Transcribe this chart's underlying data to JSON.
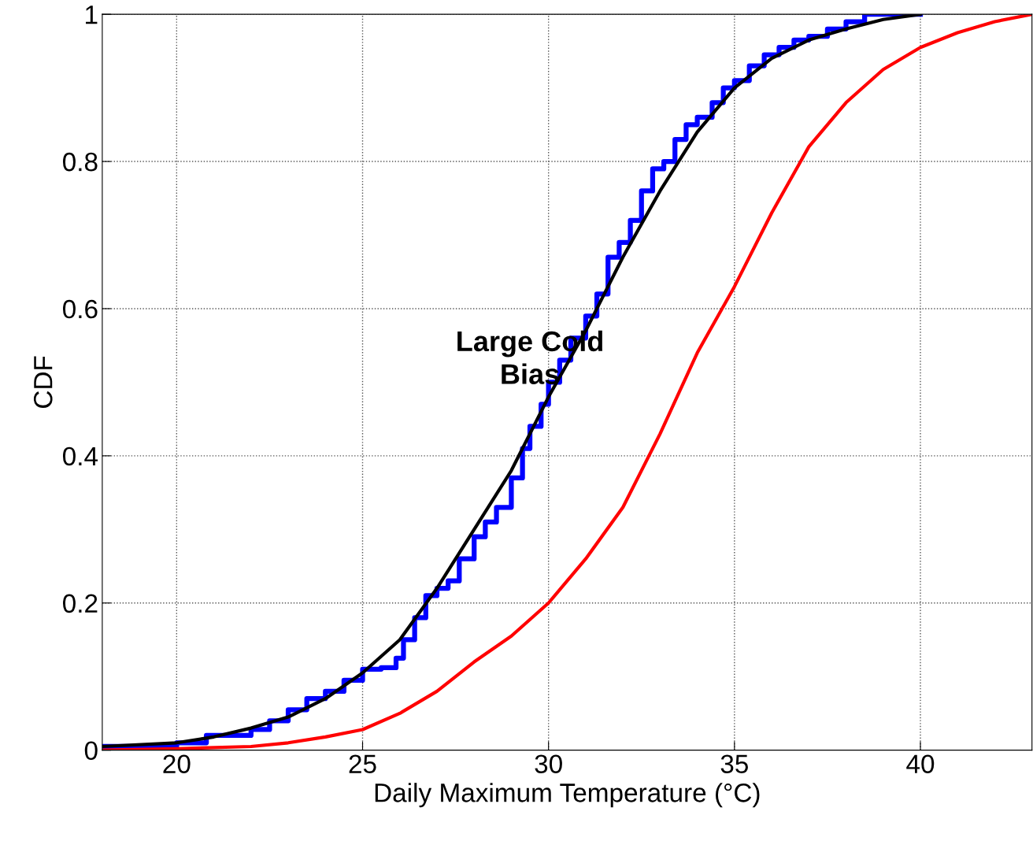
{
  "chart_data": {
    "type": "line",
    "xlabel": "Daily Maximum Temperature (°C)",
    "ylabel": "CDF",
    "xlim": [
      18,
      43
    ],
    "ylim": [
      0,
      1
    ],
    "xticks": [
      20,
      25,
      30,
      35,
      40
    ],
    "yticks": [
      0,
      0.2,
      0.4,
      0.6,
      0.8,
      1
    ],
    "grid": true,
    "line_style": "solid",
    "marker": "none",
    "annotations": [
      "Large Cold\nBias"
    ],
    "series": [
      {
        "type": "step",
        "color": "#0000ff",
        "x": [
          18,
          20,
          20.8,
          22,
          22.5,
          23,
          23.5,
          24,
          24.5,
          25,
          25.5,
          25.9,
          26.1,
          26.4,
          26.7,
          27,
          27.3,
          27.6,
          28,
          28.3,
          28.6,
          29,
          29.3,
          29.5,
          29.8,
          30,
          30.3,
          30.6,
          31,
          31.3,
          31.6,
          31.9,
          32.2,
          32.5,
          32.8,
          33.1,
          33.4,
          33.7,
          34,
          34.4,
          34.7,
          35,
          35.4,
          35.8,
          36.2,
          36.6,
          37,
          37.5,
          38,
          38.5,
          40
        ],
        "values": [
          0.005,
          0.01,
          0.02,
          0.028,
          0.04,
          0.055,
          0.07,
          0.08,
          0.095,
          0.11,
          0.112,
          0.125,
          0.15,
          0.18,
          0.21,
          0.22,
          0.23,
          0.26,
          0.29,
          0.31,
          0.33,
          0.37,
          0.41,
          0.44,
          0.47,
          0.5,
          0.53,
          0.56,
          0.59,
          0.62,
          0.67,
          0.69,
          0.72,
          0.76,
          0.79,
          0.8,
          0.83,
          0.85,
          0.86,
          0.88,
          0.9,
          0.91,
          0.93,
          0.945,
          0.955,
          0.965,
          0.97,
          0.98,
          0.99,
          1.0,
          1.0
        ]
      },
      {
        "color": "#000000",
        "x": [
          18,
          20,
          21,
          22,
          23,
          24,
          25,
          26,
          27,
          28,
          29,
          30,
          31,
          32,
          33,
          34,
          35,
          36,
          37,
          38,
          39,
          40
        ],
        "values": [
          0.005,
          0.01,
          0.018,
          0.03,
          0.045,
          0.07,
          0.105,
          0.15,
          0.22,
          0.3,
          0.38,
          0.48,
          0.57,
          0.67,
          0.76,
          0.84,
          0.9,
          0.94,
          0.965,
          0.98,
          0.993,
          1.0
        ]
      },
      {
        "color": "#ff0000",
        "x": [
          18,
          20,
          22,
          23,
          24,
          25,
          26,
          27,
          28,
          29,
          30,
          31,
          32,
          33,
          34,
          35,
          36,
          37,
          38,
          39,
          40,
          41,
          42,
          43
        ],
        "values": [
          0.0,
          0.002,
          0.005,
          0.01,
          0.018,
          0.028,
          0.05,
          0.08,
          0.12,
          0.155,
          0.2,
          0.26,
          0.33,
          0.43,
          0.54,
          0.63,
          0.73,
          0.82,
          0.88,
          0.925,
          0.955,
          0.975,
          0.99,
          1.0
        ]
      }
    ]
  }
}
